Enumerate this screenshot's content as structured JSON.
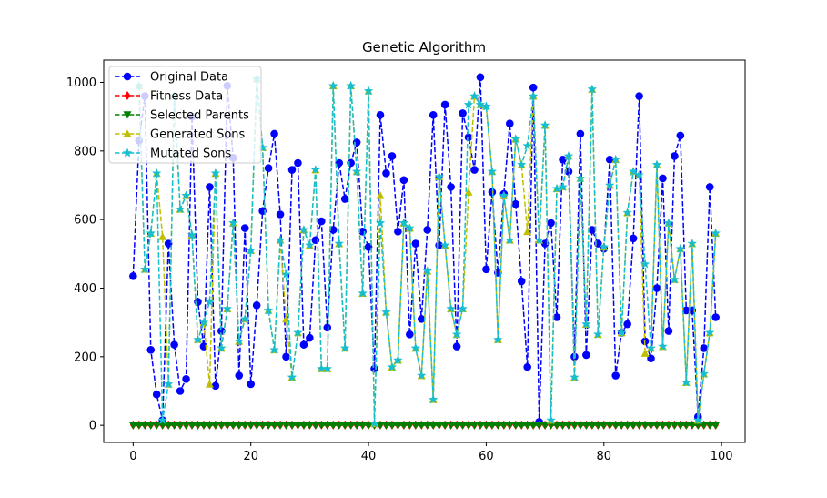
{
  "chart_data": {
    "type": "line",
    "title": "Genetic Algorithm",
    "xlabel": "",
    "ylabel": "",
    "xlim": [
      -5,
      104
    ],
    "ylim": [
      -50,
      1065
    ],
    "xticks": [
      0,
      20,
      40,
      60,
      80,
      100
    ],
    "yticks": [
      0,
      200,
      400,
      600,
      800,
      1000
    ],
    "grid": false,
    "legend_position": "upper-left",
    "series": [
      {
        "name": "Original Data",
        "color": "#0000ff",
        "marker": "circle",
        "x": [
          0,
          1,
          2,
          3,
          4,
          5,
          6,
          7,
          8,
          9,
          10,
          11,
          12,
          13,
          14,
          15,
          16,
          17,
          18,
          19,
          20,
          21,
          22,
          23,
          24,
          25,
          26,
          27,
          28,
          29,
          30,
          31,
          32,
          33,
          34,
          35,
          36,
          37,
          38,
          39,
          40,
          41,
          42,
          43,
          44,
          45,
          46,
          47,
          48,
          49,
          50,
          51,
          52,
          53,
          54,
          55,
          56,
          57,
          58,
          59,
          60,
          61,
          62,
          63,
          64,
          65,
          66,
          67,
          68,
          69,
          70,
          71,
          72,
          73,
          74,
          75,
          76,
          77,
          78,
          79,
          80,
          81,
          82,
          83,
          84,
          85,
          86,
          87,
          88,
          89,
          90,
          91,
          92,
          93,
          94,
          95,
          96,
          97,
          98,
          99
        ],
        "values": [
          435,
          830,
          960,
          220,
          90,
          15,
          530,
          235,
          100,
          135,
          900,
          360,
          230,
          695,
          115,
          275,
          990,
          780,
          145,
          575,
          120,
          350,
          625,
          750,
          850,
          615,
          200,
          745,
          765,
          235,
          255,
          540,
          595,
          285,
          570,
          765,
          660,
          765,
          825,
          565,
          520,
          165,
          905,
          735,
          785,
          565,
          715,
          265,
          530,
          310,
          570,
          905,
          525,
          935,
          695,
          230,
          910,
          840,
          745,
          1015,
          455,
          680,
          445,
          675,
          880,
          645,
          420,
          170,
          985,
          10,
          530,
          590,
          315,
          775,
          740,
          200,
          850,
          205,
          570,
          530,
          515,
          775,
          145,
          270,
          295,
          545,
          960,
          245,
          195,
          400,
          720,
          275,
          785,
          845,
          335,
          335,
          25,
          225,
          695,
          315
        ]
      },
      {
        "name": "Fitness Data",
        "color": "#ff0000",
        "marker": "diamond",
        "x": [
          0,
          1,
          2,
          3,
          4,
          5,
          6,
          7,
          8,
          9,
          10,
          11,
          12,
          13,
          14,
          15,
          16,
          17,
          18,
          19,
          20,
          21,
          22,
          23,
          24,
          25,
          26,
          27,
          28,
          29,
          30,
          31,
          32,
          33,
          34,
          35,
          36,
          37,
          38,
          39,
          40,
          41,
          42,
          43,
          44,
          45,
          46,
          47,
          48,
          49,
          50,
          51,
          52,
          53,
          54,
          55,
          56,
          57,
          58,
          59,
          60,
          61,
          62,
          63,
          64,
          65,
          66,
          67,
          68,
          69,
          70,
          71,
          72,
          73,
          74,
          75,
          76,
          77,
          78,
          79,
          80,
          81,
          82,
          83,
          84,
          85,
          86,
          87,
          88,
          89,
          90,
          91,
          92,
          93,
          94,
          95,
          96,
          97,
          98,
          99
        ],
        "values": [
          1,
          1,
          1,
          1,
          1,
          1,
          1,
          1,
          1,
          1,
          1,
          1,
          1,
          1,
          1,
          1,
          1,
          1,
          1,
          1,
          1,
          1,
          1,
          1,
          1,
          1,
          1,
          1,
          1,
          1,
          1,
          1,
          1,
          1,
          1,
          1,
          1,
          1,
          1,
          1,
          1,
          1,
          1,
          1,
          1,
          1,
          1,
          1,
          1,
          1,
          1,
          1,
          1,
          1,
          1,
          1,
          1,
          1,
          1,
          1,
          1,
          1,
          1,
          1,
          1,
          1,
          1,
          1,
          1,
          1,
          1,
          1,
          1,
          1,
          1,
          1,
          1,
          1,
          1,
          1,
          1,
          1,
          1,
          1,
          1,
          1,
          1,
          1,
          1,
          1,
          1,
          1,
          1,
          1,
          1,
          1,
          1,
          1,
          1,
          1
        ]
      },
      {
        "name": "Selected Parents",
        "color": "#008000",
        "marker": "triangle-down",
        "x": [
          0,
          1,
          2,
          3,
          4,
          5,
          6,
          7,
          8,
          9,
          10,
          11,
          12,
          13,
          14,
          15,
          16,
          17,
          18,
          19,
          20,
          21,
          22,
          23,
          24,
          25,
          26,
          27,
          28,
          29,
          30,
          31,
          32,
          33,
          34,
          35,
          36,
          37,
          38,
          39,
          40,
          41,
          42,
          43,
          44,
          45,
          46,
          47,
          48,
          49,
          50,
          51,
          52,
          53,
          54,
          55,
          56,
          57,
          58,
          59,
          60,
          61,
          62,
          63,
          64,
          65,
          66,
          67,
          68,
          69,
          70,
          71,
          72,
          73,
          74,
          75,
          76,
          77,
          78,
          79,
          80,
          81,
          82,
          83,
          84,
          85,
          86,
          87,
          88,
          89,
          90,
          91,
          92,
          93,
          94,
          95,
          96,
          97,
          98,
          99
        ],
        "values": [
          0,
          0,
          0,
          0,
          0,
          0,
          0,
          0,
          0,
          0,
          0,
          0,
          0,
          0,
          0,
          0,
          0,
          0,
          0,
          0,
          0,
          0,
          0,
          0,
          0,
          0,
          0,
          0,
          0,
          0,
          0,
          0,
          0,
          0,
          0,
          0,
          0,
          0,
          0,
          0,
          0,
          0,
          0,
          0,
          0,
          0,
          0,
          0,
          0,
          0,
          0,
          0,
          0,
          0,
          0,
          0,
          0,
          0,
          0,
          0,
          0,
          0,
          0,
          0,
          0,
          0,
          0,
          0,
          0,
          0,
          0,
          0,
          0,
          0,
          0,
          0,
          0,
          0,
          0,
          0,
          0,
          0,
          0,
          0,
          0,
          0,
          0,
          0,
          0,
          0,
          0,
          0,
          0,
          0,
          0,
          0,
          0,
          0,
          0,
          0
        ]
      },
      {
        "name": "Generated Sons",
        "color": "#bfbf00",
        "marker": "triangle-up",
        "x": [
          1,
          2,
          3,
          4,
          5,
          6,
          7,
          8,
          9,
          10,
          11,
          12,
          13,
          14,
          15,
          16,
          17,
          18,
          19,
          20,
          21,
          22,
          23,
          24,
          25,
          26,
          27,
          28,
          29,
          30,
          31,
          32,
          33,
          34,
          35,
          36,
          37,
          38,
          39,
          40,
          41,
          42,
          43,
          44,
          45,
          46,
          47,
          48,
          49,
          50,
          51,
          52,
          53,
          54,
          55,
          56,
          57,
          58,
          59,
          60,
          61,
          62,
          63,
          64,
          65,
          66,
          67,
          68,
          69,
          70,
          71,
          72,
          73,
          74,
          75,
          76,
          77,
          78,
          79,
          80,
          81,
          82,
          83,
          84,
          85,
          86,
          87,
          88,
          89,
          90,
          91,
          92,
          93,
          94,
          95,
          96,
          97,
          98,
          99
        ],
        "values": [
          990,
          455,
          560,
          735,
          550,
          120,
          960,
          630,
          670,
          555,
          250,
          300,
          120,
          735,
          225,
          340,
          590,
          245,
          310,
          510,
          1010,
          810,
          335,
          220,
          540,
          310,
          140,
          270,
          570,
          525,
          745,
          165,
          165,
          990,
          530,
          225,
          990,
          740,
          385,
          975,
          5,
          670,
          330,
          170,
          190,
          590,
          575,
          225,
          145,
          450,
          75,
          725,
          525,
          340,
          265,
          340,
          680,
          960,
          935,
          930,
          740,
          250,
          670,
          540,
          835,
          760,
          565,
          960,
          540,
          875,
          15,
          690,
          695,
          785,
          140,
          720,
          295,
          980,
          265,
          520,
          700,
          775,
          270,
          620,
          740,
          730,
          210,
          225,
          760,
          230,
          590,
          425,
          515,
          125,
          530,
          15,
          150,
          270,
          560
        ]
      },
      {
        "name": "Mutated Sons",
        "color": "#17becf",
        "marker": "star",
        "x": [
          1,
          2,
          3,
          4,
          5,
          6,
          7,
          8,
          9,
          10,
          11,
          12,
          13,
          14,
          15,
          16,
          17,
          18,
          19,
          20,
          21,
          22,
          23,
          24,
          25,
          26,
          27,
          28,
          29,
          30,
          31,
          32,
          33,
          34,
          35,
          36,
          37,
          38,
          39,
          40,
          41,
          42,
          43,
          44,
          45,
          46,
          47,
          48,
          49,
          50,
          51,
          52,
          53,
          54,
          55,
          56,
          57,
          58,
          59,
          60,
          61,
          62,
          63,
          64,
          65,
          66,
          67,
          68,
          69,
          70,
          71,
          72,
          73,
          74,
          75,
          76,
          77,
          78,
          79,
          80,
          81,
          82,
          83,
          84,
          85,
          86,
          87,
          88,
          89,
          90,
          91,
          92,
          93,
          94,
          95,
          96,
          97,
          98,
          99
        ],
        "values": [
          990,
          455,
          560,
          735,
          15,
          120,
          960,
          630,
          670,
          555,
          250,
          300,
          360,
          735,
          225,
          340,
          590,
          245,
          310,
          510,
          1010,
          810,
          335,
          220,
          540,
          440,
          140,
          270,
          570,
          525,
          745,
          165,
          165,
          990,
          530,
          225,
          990,
          740,
          385,
          975,
          5,
          590,
          330,
          170,
          190,
          590,
          575,
          225,
          145,
          450,
          75,
          725,
          525,
          340,
          265,
          340,
          935,
          960,
          935,
          930,
          740,
          250,
          670,
          540,
          835,
          760,
          815,
          960,
          540,
          875,
          15,
          690,
          695,
          785,
          140,
          720,
          295,
          980,
          265,
          520,
          700,
          775,
          270,
          620,
          740,
          730,
          470,
          225,
          760,
          230,
          590,
          425,
          515,
          125,
          530,
          15,
          150,
          270,
          560
        ]
      }
    ]
  }
}
